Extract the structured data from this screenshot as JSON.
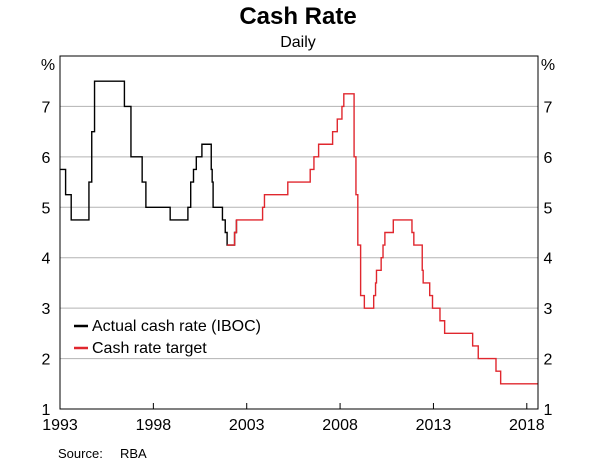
{
  "chart_data": {
    "type": "line",
    "title": "Cash Rate",
    "subtitle": "Daily",
    "unit_left": "%",
    "unit_right": "%",
    "xlim": [
      1993,
      2018.6
    ],
    "ylim": [
      1,
      8
    ],
    "x_ticks": [
      "1993",
      "1998",
      "2003",
      "2008",
      "2013",
      "2018"
    ],
    "y_ticks": [
      "1",
      "2",
      "3",
      "4",
      "5",
      "6",
      "7"
    ],
    "grid": true,
    "legend_position": "bottom-left",
    "series": [
      {
        "name": "Actual cash rate (IBOC)",
        "color": "#000000",
        "step": true,
        "points": [
          [
            1993.0,
            5.75
          ],
          [
            1993.3,
            5.25
          ],
          [
            1993.6,
            4.75
          ],
          [
            1994.55,
            5.5
          ],
          [
            1994.7,
            6.5
          ],
          [
            1994.85,
            7.5
          ],
          [
            1996.45,
            7.0
          ],
          [
            1996.8,
            6.0
          ],
          [
            1997.4,
            5.5
          ],
          [
            1997.6,
            5.0
          ],
          [
            1998.9,
            4.75
          ],
          [
            1999.85,
            5.0
          ],
          [
            2000.0,
            5.5
          ],
          [
            2000.15,
            5.75
          ],
          [
            2000.3,
            6.0
          ],
          [
            2000.6,
            6.25
          ],
          [
            2001.1,
            5.75
          ],
          [
            2001.15,
            5.5
          ],
          [
            2001.2,
            5.0
          ],
          [
            2001.7,
            4.75
          ],
          [
            2001.85,
            4.5
          ],
          [
            2001.95,
            4.25
          ],
          [
            2002.35,
            4.5
          ],
          [
            2002.45,
            4.75
          ]
        ]
      },
      {
        "name": "Cash rate target",
        "color": "#e0272e",
        "step": true,
        "points": [
          [
            2001.95,
            4.25
          ],
          [
            2002.35,
            4.5
          ],
          [
            2002.45,
            4.75
          ],
          [
            2003.85,
            5.0
          ],
          [
            2003.95,
            5.25
          ],
          [
            2005.2,
            5.5
          ],
          [
            2006.4,
            5.75
          ],
          [
            2006.6,
            6.0
          ],
          [
            2006.85,
            6.25
          ],
          [
            2007.6,
            6.5
          ],
          [
            2007.85,
            6.75
          ],
          [
            2008.1,
            7.0
          ],
          [
            2008.2,
            7.25
          ],
          [
            2008.75,
            6.0
          ],
          [
            2008.85,
            5.25
          ],
          [
            2008.95,
            4.25
          ],
          [
            2009.1,
            3.25
          ],
          [
            2009.3,
            3.0
          ],
          [
            2009.8,
            3.25
          ],
          [
            2009.9,
            3.5
          ],
          [
            2009.95,
            3.75
          ],
          [
            2010.2,
            4.0
          ],
          [
            2010.3,
            4.25
          ],
          [
            2010.4,
            4.5
          ],
          [
            2010.85,
            4.75
          ],
          [
            2011.85,
            4.5
          ],
          [
            2011.95,
            4.25
          ],
          [
            2012.4,
            3.75
          ],
          [
            2012.45,
            3.5
          ],
          [
            2012.8,
            3.25
          ],
          [
            2012.95,
            3.0
          ],
          [
            2013.35,
            2.75
          ],
          [
            2013.6,
            2.5
          ],
          [
            2015.1,
            2.25
          ],
          [
            2015.4,
            2.0
          ],
          [
            2016.35,
            1.75
          ],
          [
            2016.6,
            1.5
          ],
          [
            2018.6,
            1.5
          ]
        ]
      }
    ],
    "source_label": "Source:",
    "source_value": "RBA"
  }
}
